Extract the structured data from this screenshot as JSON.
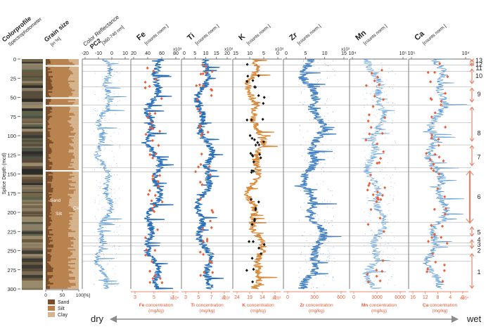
{
  "chart_data": {
    "type": "line",
    "title": "",
    "ylabel": "Splice Depth (mcd)",
    "ylim": [
      0,
      300
    ],
    "yticks": [
      0,
      25,
      50,
      75,
      100,
      125,
      150,
      175,
      200,
      225,
      250,
      275,
      300
    ],
    "horizontal_lines": [
      8,
      16,
      36,
      60,
      83,
      112,
      142,
      147,
      213,
      231,
      240,
      244,
      255,
      264
    ],
    "colorprofile": {
      "title": "Colorprofile",
      "subtitle": "Spectrophotometer"
    },
    "grainsize": {
      "title": "Grain size",
      "unit": "[in %]",
      "x_ticks": [
        "0",
        "50",
        "100[%]"
      ],
      "labels": [
        "Sand",
        "Silt",
        "Clay"
      ],
      "legend": [
        {
          "label": "Sand",
          "color": "#7a4e2a"
        },
        {
          "label": "Silt",
          "color": "#b98350"
        },
        {
          "label": "Clay",
          "color": "#d6b48e"
        }
      ]
    },
    "panels": [
      {
        "id": "pc2",
        "title_small": "Color Reflectance",
        "title_bold": "PC2",
        "unit": "[360-740 nm]",
        "x_ticks": [
          "-20",
          "-10",
          "0",
          "10"
        ],
        "exponent": "",
        "color": "#4a8fd0",
        "markers": "",
        "bottom_ticks": [],
        "bottom_exp": "",
        "bottom_label_bold": "",
        "bottom_label_rest": "",
        "bottom_unit": ""
      },
      {
        "id": "fe",
        "title_bold": "Fe",
        "unit": "[counts norm.]",
        "x_ticks": [
          "20",
          "40",
          "60",
          "80"
        ],
        "exponent": "x10³",
        "color": "#2a70b8",
        "markers": "#e8603a",
        "bottom_ticks": [
          "3",
          "5",
          "7"
        ],
        "bottom_exp": "x10⁴",
        "bottom_label_bold": "Fe",
        "bottom_label_rest": " concentration",
        "bottom_unit": "(mg/kg)"
      },
      {
        "id": "ti",
        "title_bold": "Ti",
        "unit": "[counts norm.]",
        "x_ticks": [
          "0",
          "5",
          "10",
          "15",
          "20"
        ],
        "exponent": "x10³",
        "color": "#2a70b8",
        "markers": "#e8603a",
        "bottom_ticks": [
          "3",
          "5",
          "7",
          "9"
        ],
        "bottom_exp": "x10³",
        "bottom_label_bold": "Ti",
        "bottom_label_rest": " concentration",
        "bottom_unit": "(mg/kg)"
      },
      {
        "id": "k",
        "title_bold": "K",
        "unit": "[counts norm.]",
        "x_ticks": [
          "15",
          "10",
          "5",
          "0"
        ],
        "exponent": "x10³",
        "color": "#d98a3a",
        "markers": "#111111",
        "bottom_ticks": [
          "24",
          "19",
          "14",
          "9"
        ],
        "bottom_exp": "x10³",
        "bottom_label_bold": "K",
        "bottom_label_rest": " concentration",
        "bottom_unit": "(mg/kg)"
      },
      {
        "id": "zr",
        "title_bold": "Zr",
        "unit": "[counts norm.]",
        "x_ticks": [
          "0",
          "5",
          "10",
          "15"
        ],
        "exponent": "x10³",
        "color": "#2a70b8",
        "markers": "",
        "bottom_ticks": [
          "0",
          "300",
          "600"
        ],
        "bottom_exp": "",
        "bottom_label_bold": "Zr",
        "bottom_label_rest": " concentration",
        "bottom_unit": "(mg/kg)"
      },
      {
        "id": "mn",
        "title_bold": "Mn",
        "unit": "[counts norm.]",
        "x_ticks": [
          "10⁴",
          "10⁵"
        ],
        "exponent": "",
        "color": "#4a8fd0",
        "markers": "#e8603a",
        "bottom_ticks": [
          "0",
          "3000",
          "6000"
        ],
        "bottom_exp": "",
        "bottom_label_bold": "Mn",
        "bottom_label_rest": " concentration",
        "bottom_unit": "(mg/kg)"
      },
      {
        "id": "ca",
        "title_bold": "Ca",
        "unit": "[counts norm.]",
        "x_ticks": [
          "10⁵",
          "10⁴"
        ],
        "exponent": "",
        "color": "#4a8fd0",
        "markers": "#e8603a",
        "bottom_ticks": [
          "16",
          "12",
          "8",
          "4",
          "0"
        ],
        "bottom_exp": "x10⁴",
        "bottom_label_bold": "Ca",
        "bottom_label_rest": " concentration",
        "bottom_unit": "(mg/kg)"
      }
    ],
    "units": {
      "labels": [
        "13",
        "12",
        "11",
        "10",
        "9",
        "8",
        "7",
        "6",
        "5",
        "4",
        "3",
        "2",
        "1"
      ],
      "depths": [
        2,
        7,
        12,
        22,
        46,
        97,
        128,
        180,
        226,
        236,
        242,
        250,
        278
      ],
      "color": "#e8826a"
    },
    "gradient": {
      "left": "dry",
      "right": "wet"
    }
  }
}
